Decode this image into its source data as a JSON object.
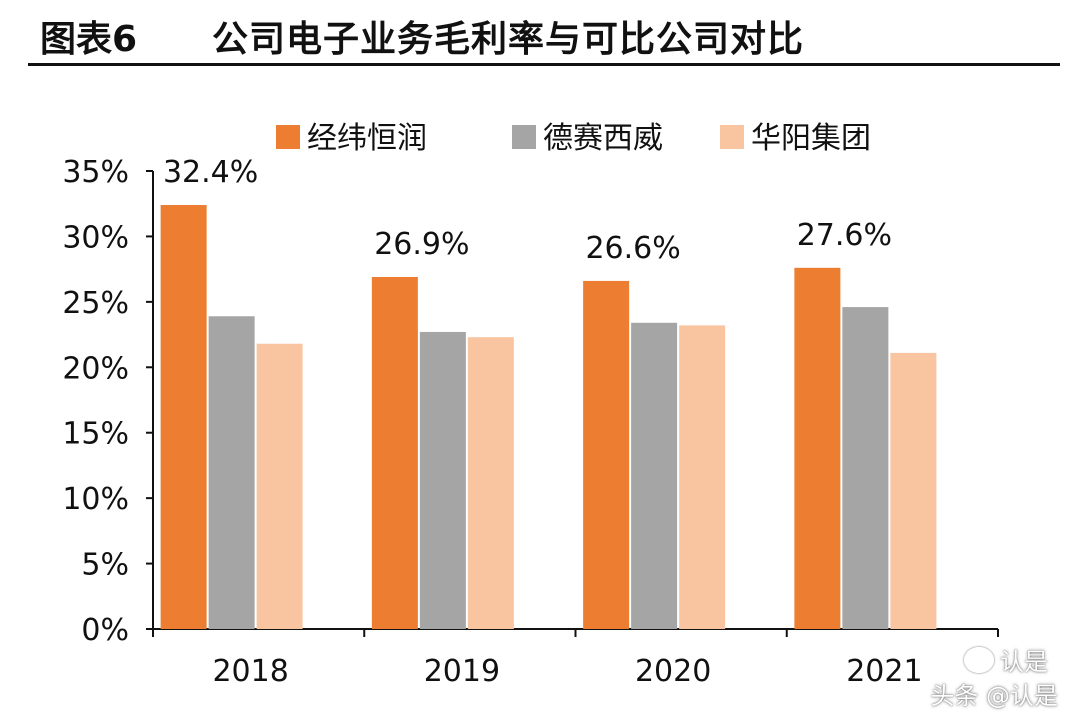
{
  "header": {
    "figure_number": "图表6",
    "title": "公司电子业务毛利率与可比公司对比"
  },
  "watermark": {
    "top_text": "认是",
    "bottom_text": "头条 @认是"
  },
  "colors": {
    "series": [
      "#ED7D31",
      "#A5A5A5",
      "#F8C5A0"
    ],
    "axis": "#111111",
    "text": "#111111"
  },
  "chart_data": {
    "type": "bar",
    "title": "",
    "xlabel": "",
    "ylabel": "",
    "categories": [
      "2018",
      "2019",
      "2020",
      "2021"
    ],
    "series": [
      {
        "name": "经纬恒润",
        "values": [
          32.4,
          26.9,
          26.6,
          27.6
        ],
        "data_labels": [
          "32.4%",
          "26.9%",
          "26.6%",
          "27.6%"
        ]
      },
      {
        "name": "德赛西威",
        "values": [
          23.9,
          22.7,
          23.4,
          24.6
        ]
      },
      {
        "name": "华阳集团",
        "values": [
          21.8,
          22.3,
          23.2,
          21.1
        ]
      }
    ],
    "ylim": [
      0,
      35
    ],
    "y_ticks": [
      0,
      5,
      10,
      15,
      20,
      25,
      30,
      35
    ],
    "y_tick_labels": [
      "0%",
      "5%",
      "10%",
      "15%",
      "20%",
      "25%",
      "30%",
      "35%"
    ],
    "grid": false,
    "legend_position": "top-center"
  }
}
